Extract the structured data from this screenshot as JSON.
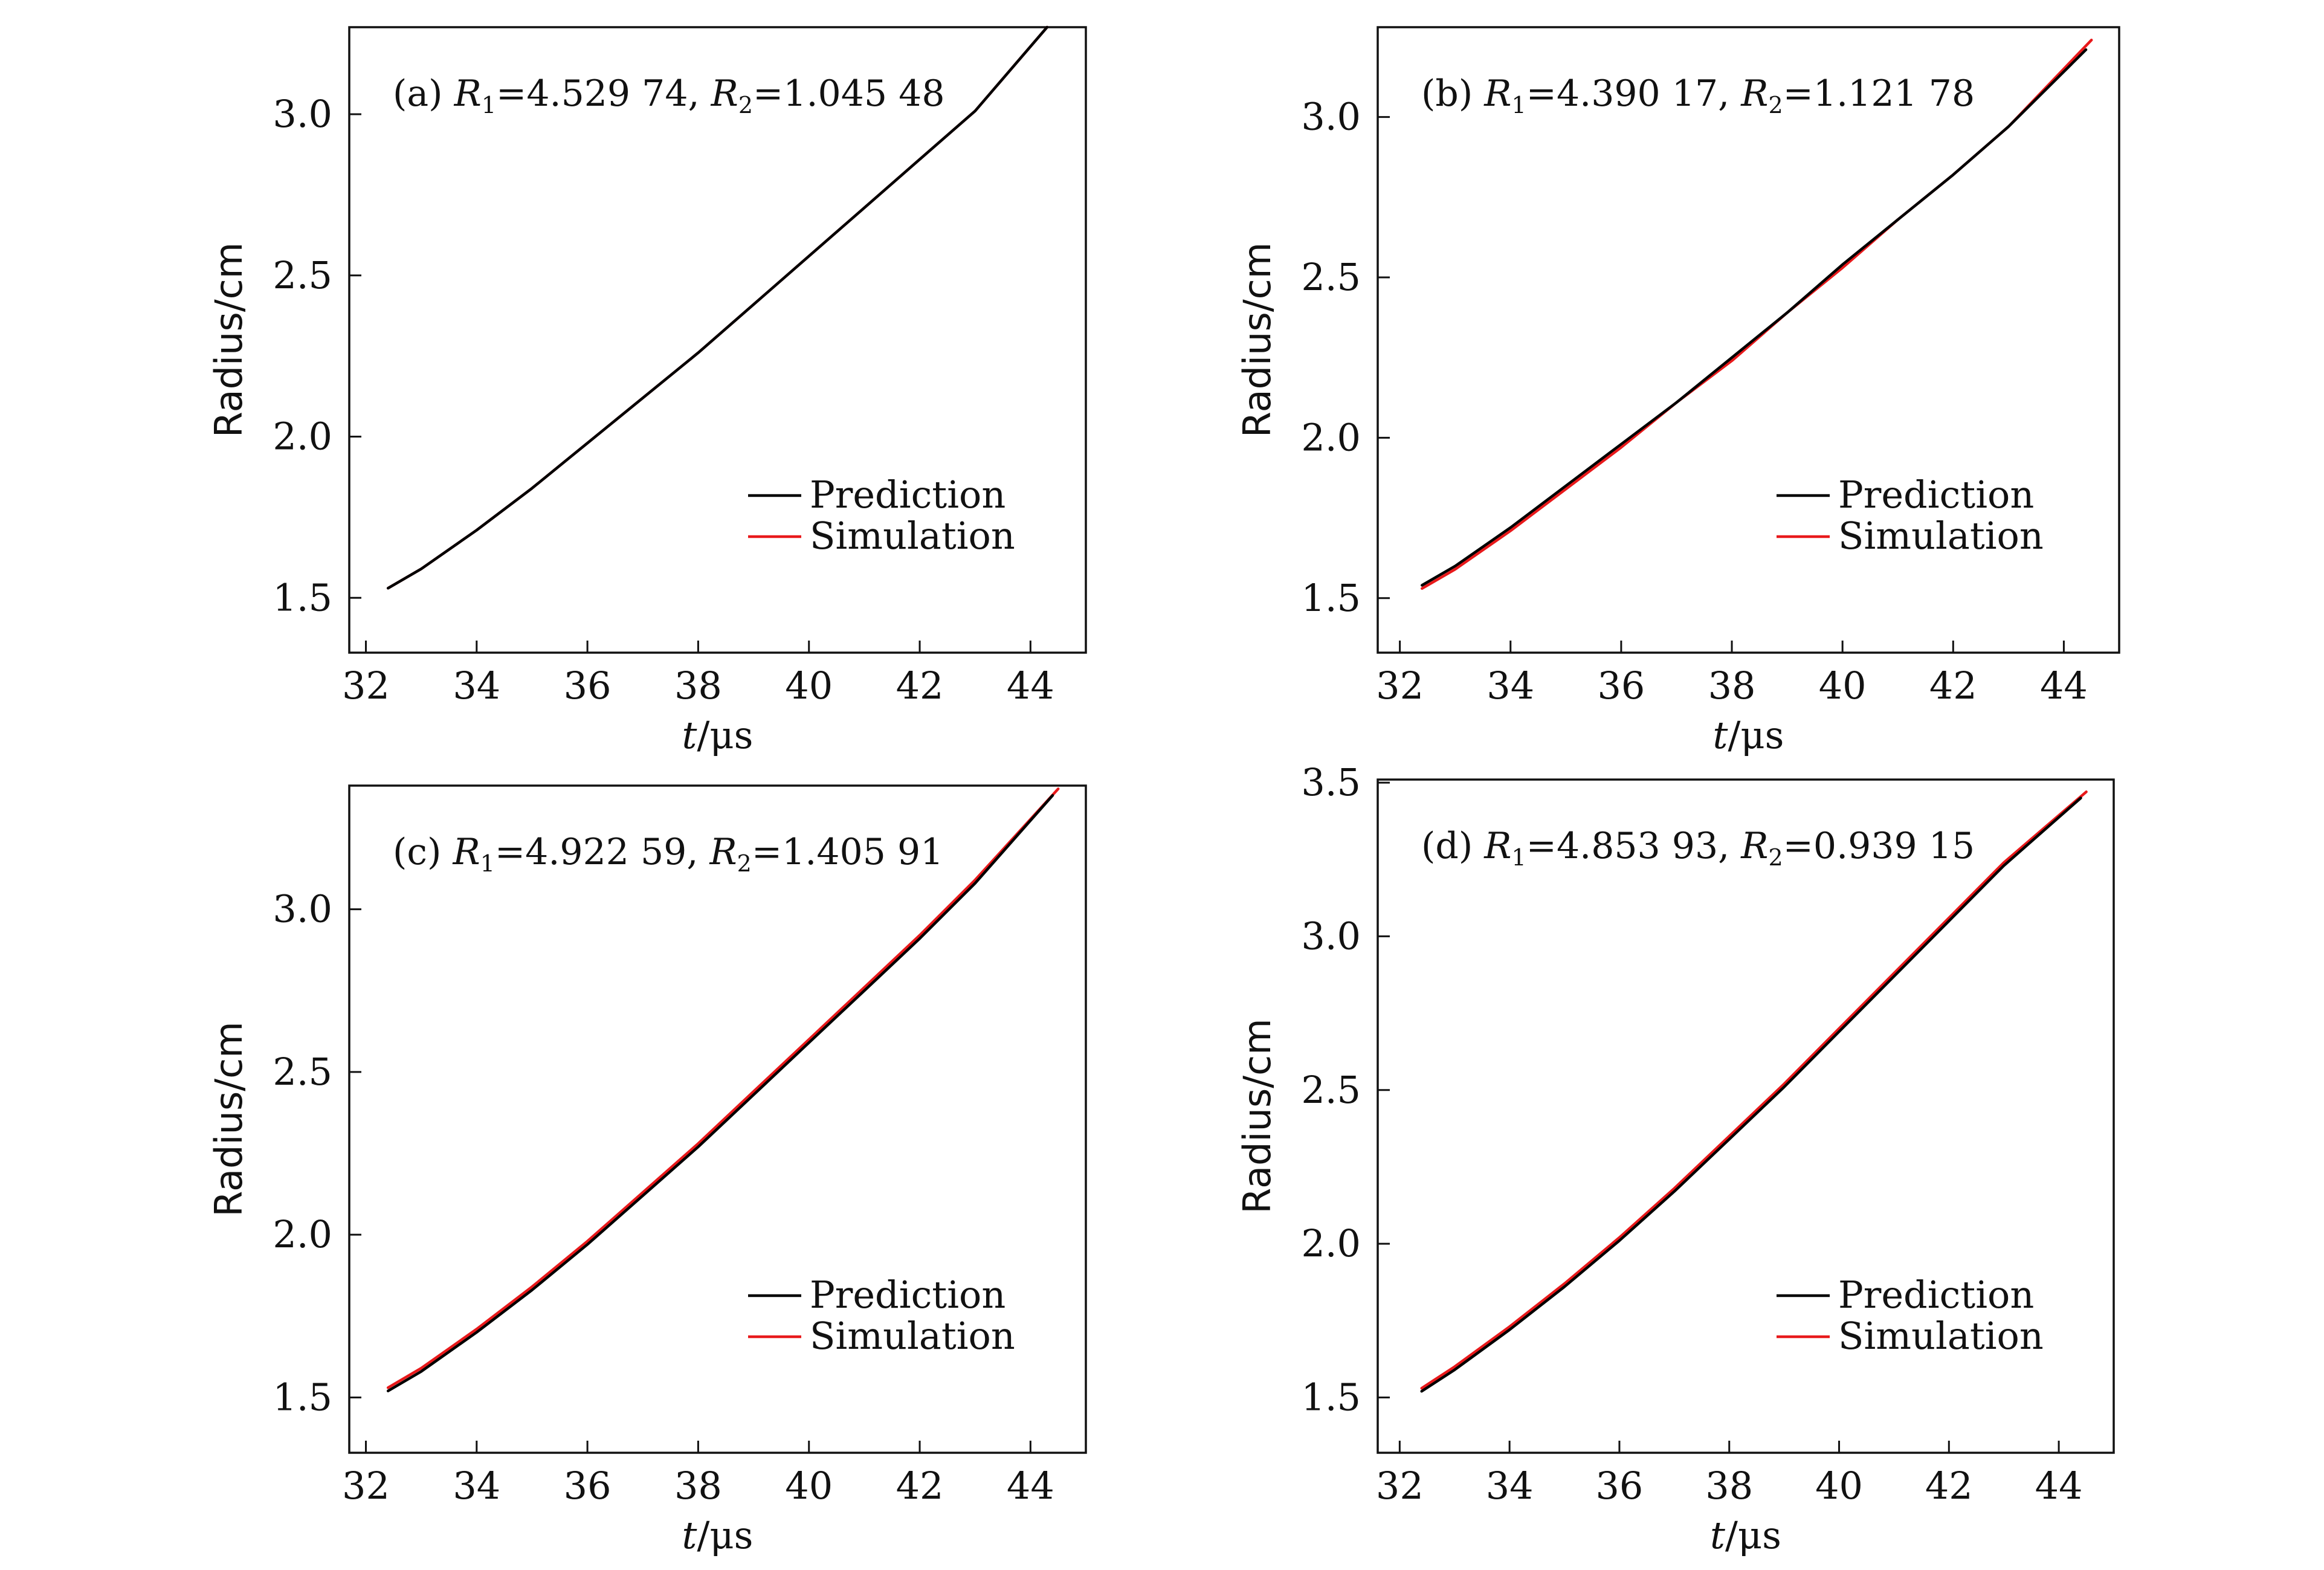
{
  "chart_data": [
    {
      "type": "line",
      "panel": "a",
      "title_parts": {
        "label": "(a) ",
        "r1_base": "R",
        "r1_sub": "1",
        "r1_val": "=4.529 74, ",
        "r2_base": "R",
        "r2_sub": "2",
        "r2_val": "=1.045 48"
      },
      "xlabel": {
        "italic": "t",
        "rest": "/μs"
      },
      "ylabel": "Radius/cm",
      "xlim": [
        31.7,
        45.0
      ],
      "ylim": [
        1.33,
        3.27
      ],
      "xticks": [
        32,
        34,
        36,
        38,
        40,
        42,
        44
      ],
      "xtick_labels": [
        "32",
        "34",
        "36",
        "38",
        "40",
        "42",
        "44"
      ],
      "yticks": [
        1.5,
        2.0,
        2.5,
        3.0
      ],
      "ytick_labels": [
        "1.5",
        "2.0",
        "2.5",
        "3.0"
      ],
      "legend": {
        "placement": "lower-right",
        "entries": [
          "Prediction",
          "Simulation"
        ]
      },
      "series": [
        {
          "name": "Prediction",
          "color": "#000000",
          "x": [
            32.4,
            33.0,
            34.0,
            35.0,
            36.0,
            37.0,
            38.0,
            39.0,
            40.0,
            41.0,
            42.0,
            43.0,
            44.3
          ],
          "y": [
            1.53,
            1.59,
            1.71,
            1.84,
            1.98,
            2.12,
            2.26,
            2.41,
            2.56,
            2.71,
            2.86,
            3.01,
            3.27
          ]
        },
        {
          "name": "Simulation",
          "color": "#e8191b",
          "x": [
            32.4,
            33.0,
            34.0,
            35.0,
            36.0,
            37.0,
            38.0,
            39.0,
            40.0,
            41.0,
            42.0,
            43.0,
            44.3
          ],
          "y": [
            1.53,
            1.59,
            1.71,
            1.84,
            1.98,
            2.12,
            2.26,
            2.41,
            2.56,
            2.71,
            2.86,
            3.01,
            3.27
          ]
        }
      ]
    },
    {
      "type": "line",
      "panel": "b",
      "title_parts": {
        "label": "(b) ",
        "r1_base": "R",
        "r1_sub": "1",
        "r1_val": "=4.390 17, ",
        "r2_base": "R",
        "r2_sub": "2",
        "r2_val": "=1.121 78"
      },
      "xlabel": {
        "italic": "t",
        "rest": "/μs"
      },
      "ylabel": "Radius/cm",
      "xlim": [
        31.6,
        45.0
      ],
      "ylim": [
        1.33,
        3.28
      ],
      "xticks": [
        32,
        34,
        36,
        38,
        40,
        42,
        44
      ],
      "xtick_labels": [
        "32",
        "34",
        "36",
        "38",
        "40",
        "42",
        "44"
      ],
      "yticks": [
        1.5,
        2.0,
        2.5,
        3.0
      ],
      "ytick_labels": [
        "1.5",
        "2.0",
        "2.5",
        "3.0"
      ],
      "legend": {
        "placement": "lower-right",
        "entries": [
          "Prediction",
          "Simulation"
        ]
      },
      "series": [
        {
          "name": "Prediction",
          "color": "#000000",
          "x": [
            32.4,
            33.0,
            34.0,
            35.0,
            36.0,
            37.0,
            38.0,
            39.0,
            40.0,
            41.0,
            42.0,
            43.0,
            44.4
          ],
          "y": [
            1.54,
            1.6,
            1.72,
            1.85,
            1.98,
            2.11,
            2.25,
            2.39,
            2.54,
            2.68,
            2.82,
            2.97,
            3.21
          ]
        },
        {
          "name": "Simulation",
          "color": "#e8191b",
          "x": [
            32.4,
            33.0,
            34.0,
            35.0,
            36.0,
            37.0,
            38.0,
            39.0,
            40.0,
            41.0,
            42.0,
            43.0,
            44.5
          ],
          "y": [
            1.53,
            1.59,
            1.71,
            1.84,
            1.97,
            2.11,
            2.24,
            2.39,
            2.53,
            2.68,
            2.82,
            2.97,
            3.24
          ]
        }
      ]
    },
    {
      "type": "line",
      "panel": "c",
      "title_parts": {
        "label": "(c) ",
        "r1_base": "R",
        "r1_sub": "1",
        "r1_val": "=4.922 59, ",
        "r2_base": "R",
        "r2_sub": "2",
        "r2_val": "=1.405 91"
      },
      "xlabel": {
        "italic": "t",
        "rest": "/μs"
      },
      "ylabel": "Radius/cm",
      "xlim": [
        31.7,
        45.0
      ],
      "ylim": [
        1.33,
        3.38
      ],
      "xticks": [
        32,
        34,
        36,
        38,
        40,
        42,
        44
      ],
      "xtick_labels": [
        "32",
        "34",
        "36",
        "38",
        "40",
        "42",
        "44"
      ],
      "yticks": [
        1.5,
        2.0,
        2.5,
        3.0
      ],
      "ytick_labels": [
        "1.5",
        "2.0",
        "2.5",
        "3.0"
      ],
      "legend": {
        "placement": "lower-right",
        "entries": [
          "Prediction",
          "Simulation"
        ]
      },
      "series": [
        {
          "name": "Prediction",
          "color": "#000000",
          "x": [
            32.4,
            33.0,
            34.0,
            35.0,
            36.0,
            37.0,
            38.0,
            39.0,
            40.0,
            41.0,
            42.0,
            43.0,
            44.4
          ],
          "y": [
            1.52,
            1.58,
            1.7,
            1.83,
            1.97,
            2.12,
            2.27,
            2.43,
            2.59,
            2.75,
            2.91,
            3.08,
            3.35
          ]
        },
        {
          "name": "Simulation",
          "color": "#e8191b",
          "x": [
            32.4,
            33.0,
            34.0,
            35.0,
            36.0,
            37.0,
            38.0,
            39.0,
            40.0,
            41.0,
            42.0,
            43.0,
            44.5
          ],
          "y": [
            1.53,
            1.59,
            1.71,
            1.84,
            1.98,
            2.13,
            2.28,
            2.44,
            2.6,
            2.76,
            2.92,
            3.09,
            3.37
          ]
        }
      ]
    },
    {
      "type": "line",
      "panel": "d",
      "title_parts": {
        "label": "(d) ",
        "r1_base": "R",
        "r1_sub": "1",
        "r1_val": "=4.853 93, ",
        "r2_base": "R",
        "r2_sub": "2",
        "r2_val": "=0.939 15"
      },
      "xlabel": {
        "italic": "t",
        "rest": "/μs"
      },
      "ylabel": "Radius/cm",
      "xlim": [
        31.6,
        45.0
      ],
      "ylim": [
        1.32,
        3.51
      ],
      "xticks": [
        32,
        34,
        36,
        38,
        40,
        42,
        44
      ],
      "xtick_labels": [
        "32",
        "34",
        "36",
        "38",
        "40",
        "42",
        "44"
      ],
      "yticks": [
        1.5,
        2.0,
        2.5,
        3.0,
        3.5
      ],
      "ytick_labels": [
        "1.5",
        "2.0",
        "2.5",
        "3.0",
        "3.5"
      ],
      "legend": {
        "placement": "lower-right",
        "entries": [
          "Prediction",
          "Simulation"
        ]
      },
      "series": [
        {
          "name": "Prediction",
          "color": "#000000",
          "x": [
            32.4,
            33.0,
            34.0,
            35.0,
            36.0,
            37.0,
            38.0,
            39.0,
            40.0,
            41.0,
            42.0,
            43.0,
            44.4
          ],
          "y": [
            1.52,
            1.59,
            1.72,
            1.86,
            2.01,
            2.17,
            2.34,
            2.51,
            2.69,
            2.87,
            3.05,
            3.23,
            3.45
          ]
        },
        {
          "name": "Simulation",
          "color": "#e8191b",
          "x": [
            32.4,
            33.0,
            34.0,
            35.0,
            36.0,
            37.0,
            38.0,
            39.0,
            40.0,
            41.0,
            42.0,
            43.0,
            44.5
          ],
          "y": [
            1.53,
            1.6,
            1.73,
            1.87,
            2.02,
            2.18,
            2.35,
            2.52,
            2.7,
            2.88,
            3.06,
            3.24,
            3.47
          ]
        }
      ]
    }
  ]
}
